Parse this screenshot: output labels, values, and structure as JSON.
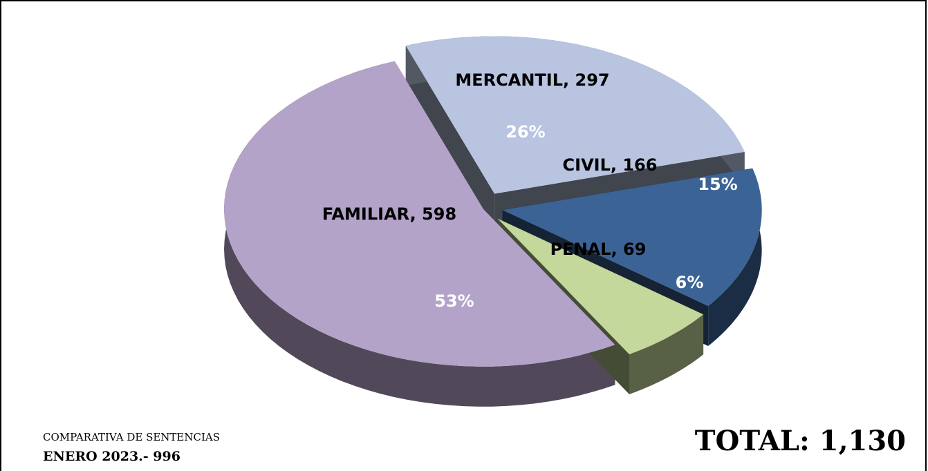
{
  "chart_data": {
    "type": "pie",
    "categories": [
      "MERCANTIL",
      "CIVIL",
      "PENAL",
      "FAMILIAR"
    ],
    "values": [
      297,
      166,
      69,
      598
    ],
    "value_labels": [
      "MERCANTIL, 297",
      "CIVIL, 166",
      "PENAL, 69",
      "FAMILIAR, 598"
    ],
    "percentages": [
      26,
      15,
      6,
      53
    ],
    "percentage_labels": [
      "26%",
      "15%",
      "6%",
      "53%"
    ],
    "colors": [
      "#b8c4e0",
      "#3b6396",
      "#c4d89b",
      "#b3a3c9"
    ],
    "subtitle": "COMPARATIVA DE SENTENCIAS",
    "title": "ENERO 2023.-  996",
    "annotation": "TOTAL: 1,130"
  }
}
